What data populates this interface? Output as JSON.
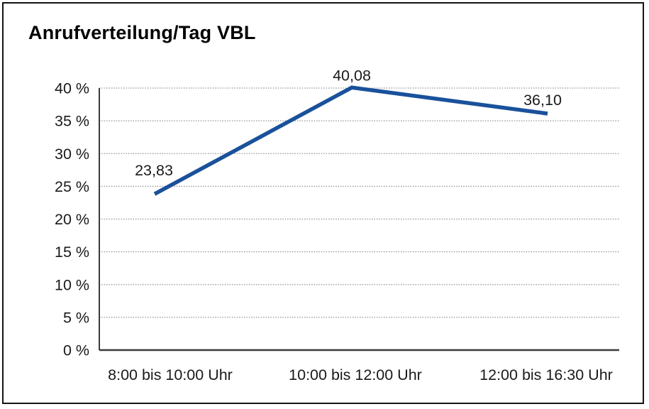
{
  "chart_data": {
    "type": "line",
    "title": "Anrufverteilung/Tag VBL",
    "categories": [
      "8:00 bis 10:00 Uhr",
      "10:00 bis 12:00 Uhr",
      "12:00 bis 16:30 Uhr"
    ],
    "values": [
      23.83,
      40.08,
      36.1
    ],
    "data_labels": [
      "23,83",
      "40,08",
      "36,10"
    ],
    "y_tick_labels": [
      "0 %",
      "5 %",
      "10 %",
      "15 %",
      "20 %",
      "25 %",
      "30 %",
      "35 %",
      "40 %"
    ],
    "y_tick_values": [
      0,
      5,
      10,
      15,
      20,
      25,
      30,
      35,
      40
    ],
    "ylim": [
      0,
      40
    ],
    "xlabel": "",
    "ylabel": "",
    "legend": "none",
    "grid": "horizontal-dotted",
    "line_color": "#1a519b",
    "grid_color": "#8c8c8c",
    "axis_color": "#3a3a3a",
    "text_color": "#1a1a1a"
  }
}
